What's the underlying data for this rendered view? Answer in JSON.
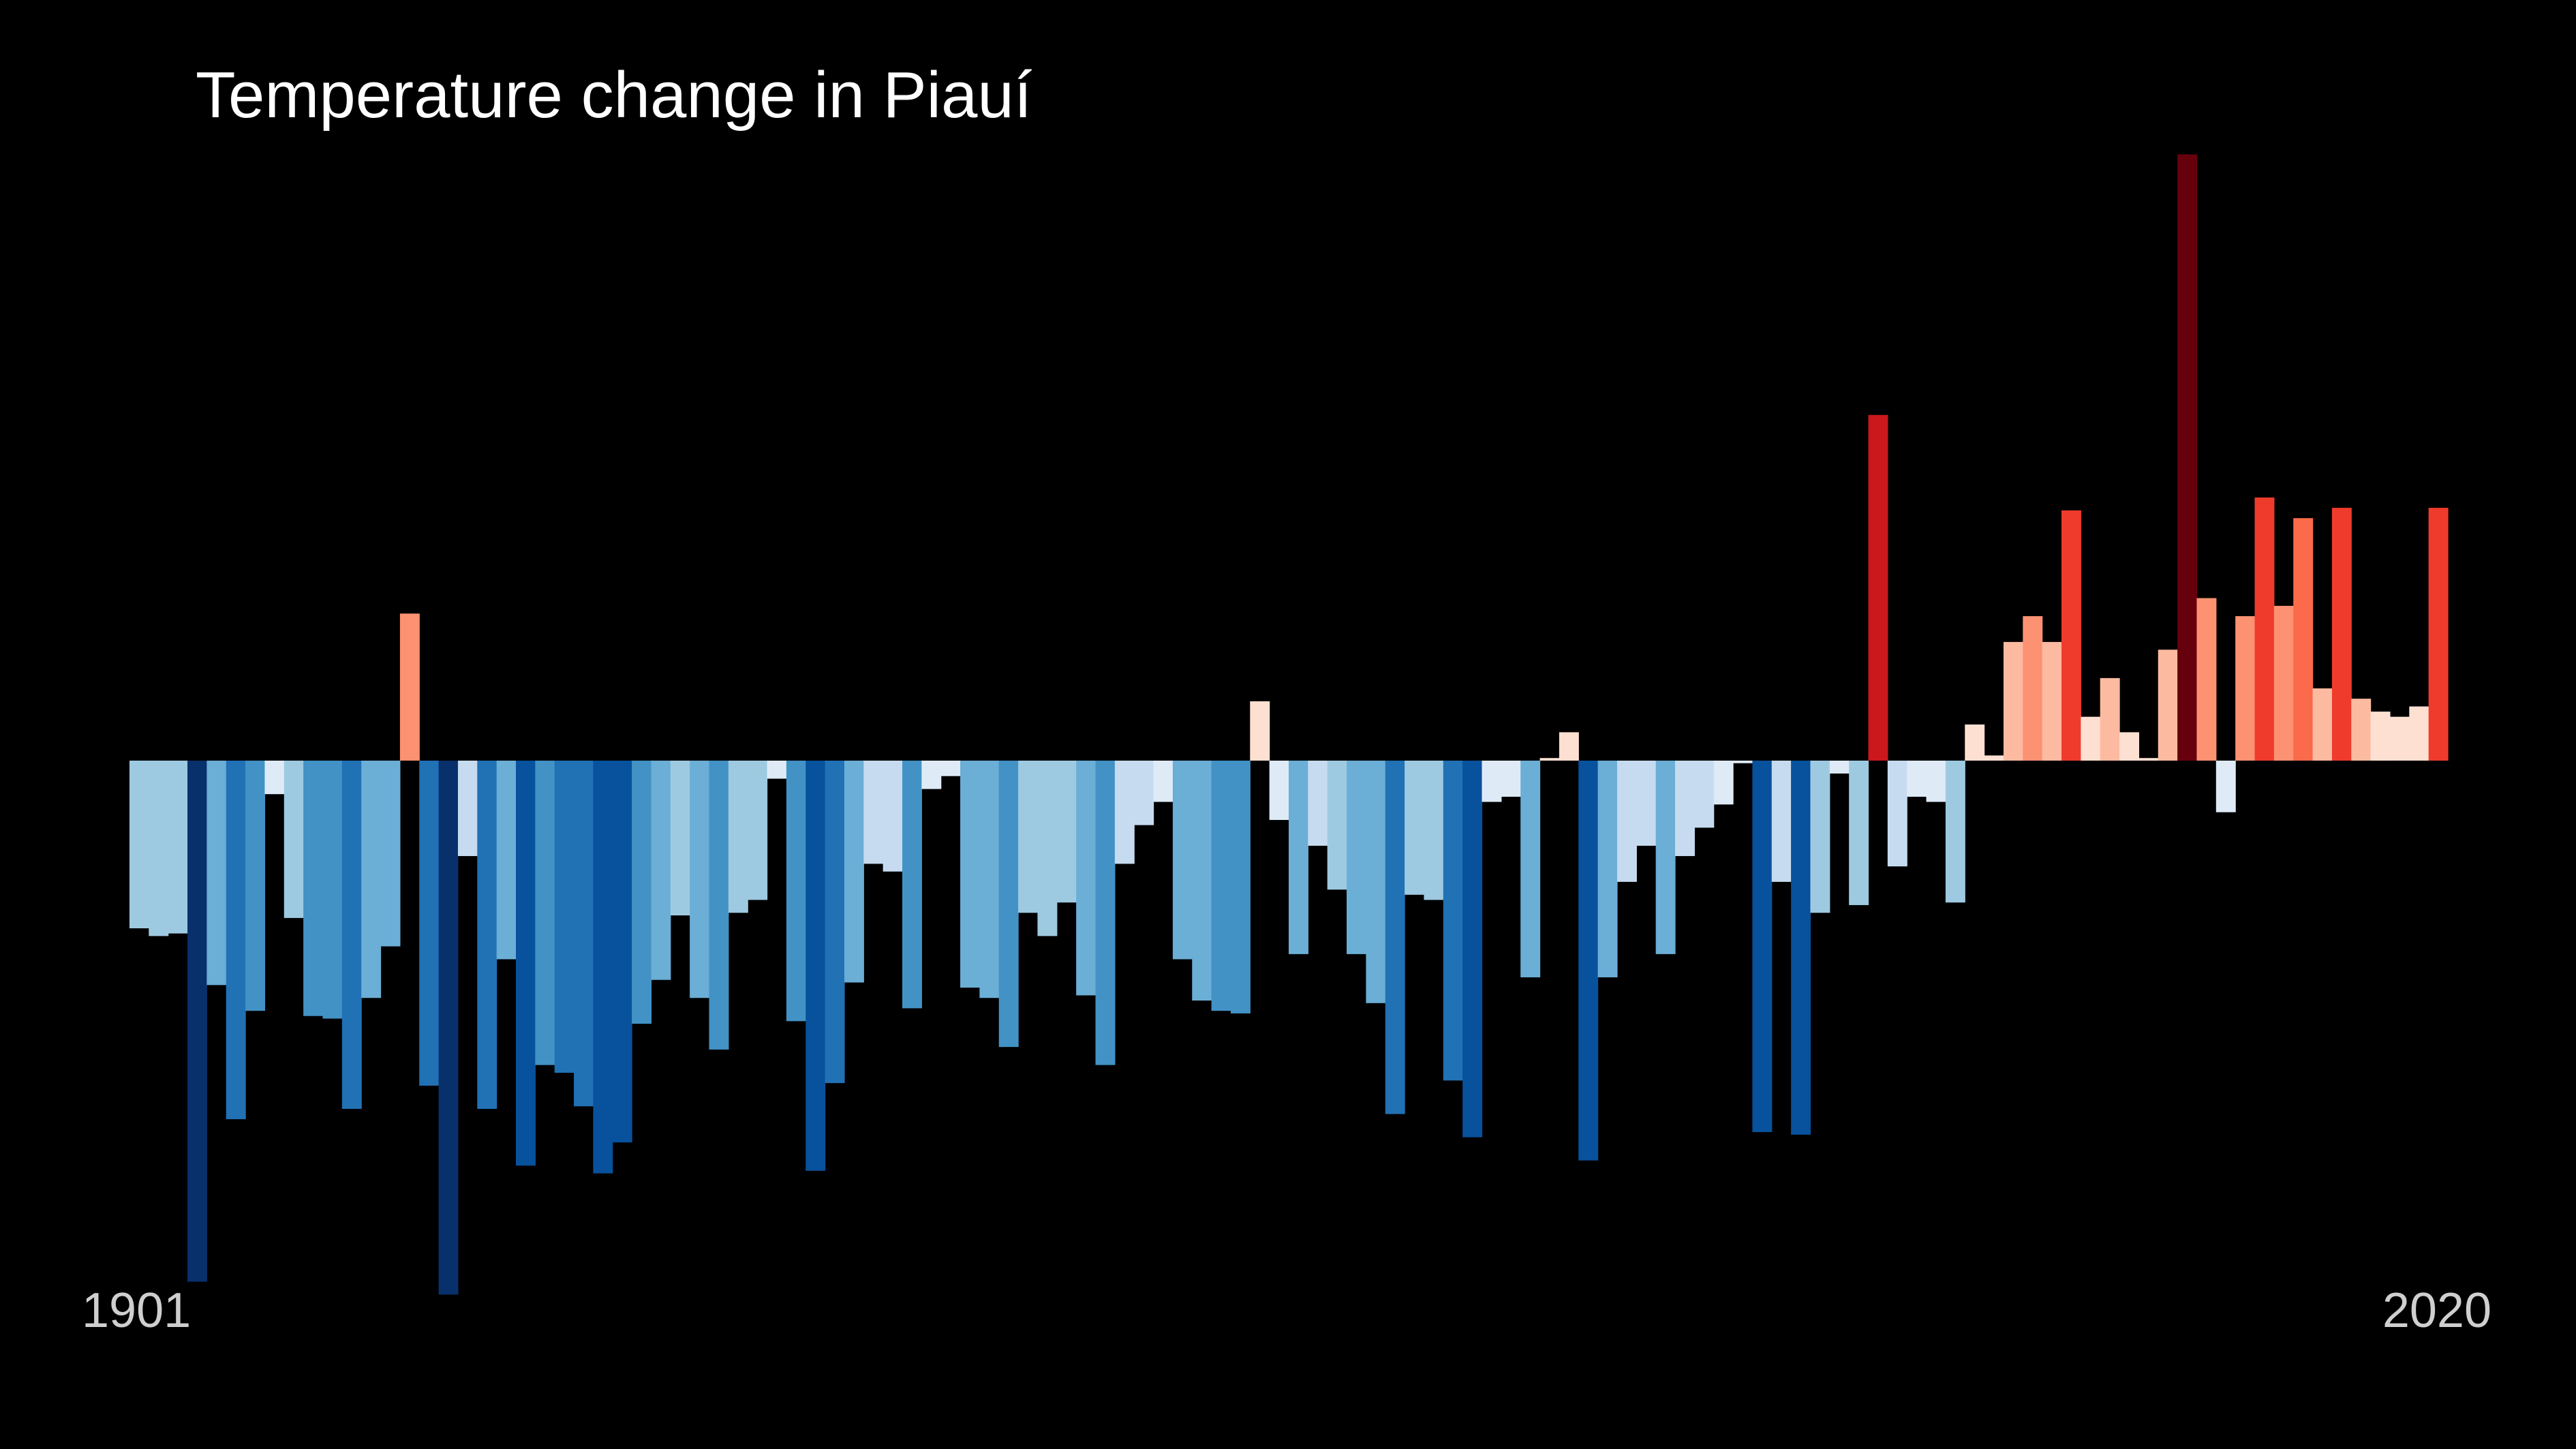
{
  "chart_data": {
    "type": "bar",
    "title": "Temperature change in Piauí",
    "x_start_label": "1901",
    "x_end_label": "2020",
    "x": [
      1901,
      1902,
      1903,
      1904,
      1905,
      1906,
      1907,
      1908,
      1909,
      1910,
      1911,
      1912,
      1913,
      1914,
      1915,
      1916,
      1917,
      1918,
      1919,
      1920,
      1921,
      1922,
      1923,
      1924,
      1925,
      1926,
      1927,
      1928,
      1929,
      1930,
      1931,
      1932,
      1933,
      1934,
      1935,
      1936,
      1937,
      1938,
      1939,
      1940,
      1941,
      1942,
      1943,
      1944,
      1945,
      1946,
      1947,
      1948,
      1949,
      1950,
      1951,
      1952,
      1953,
      1954,
      1955,
      1956,
      1957,
      1958,
      1959,
      1960,
      1961,
      1962,
      1963,
      1964,
      1965,
      1966,
      1967,
      1968,
      1969,
      1970,
      1971,
      1972,
      1973,
      1974,
      1975,
      1976,
      1977,
      1978,
      1979,
      1980,
      1981,
      1982,
      1983,
      1984,
      1985,
      1986,
      1987,
      1988,
      1989,
      1990,
      1991,
      1992,
      1993,
      1994,
      1995,
      1996,
      1997,
      1998,
      1999,
      2000,
      2001,
      2002,
      2003,
      2004,
      2005,
      2006,
      2007,
      2008,
      2009,
      2010,
      2011,
      2012,
      2013,
      2014,
      2015,
      2016,
      2017,
      2018,
      2019,
      2020
    ],
    "values": [
      -0.65,
      -0.68,
      -0.67,
      -2.02,
      -0.87,
      -1.39,
      -0.97,
      -0.13,
      -0.61,
      -0.99,
      -1.0,
      -1.35,
      -0.92,
      -0.72,
      0.57,
      -1.26,
      -2.07,
      -0.37,
      -1.35,
      -0.77,
      -1.57,
      -1.18,
      -1.21,
      -1.34,
      -1.6,
      -1.48,
      -1.02,
      -0.85,
      -0.6,
      -0.92,
      -1.12,
      -0.59,
      -0.54,
      -0.07,
      -1.01,
      -1.59,
      -1.25,
      -0.86,
      -0.4,
      -0.43,
      -0.96,
      -0.11,
      -0.06,
      -0.88,
      -0.92,
      -1.11,
      -0.59,
      -0.68,
      -0.55,
      -0.91,
      -1.18,
      -0.4,
      -0.25,
      -0.16,
      -0.77,
      -0.93,
      -0.97,
      -0.98,
      0.23,
      -0.23,
      -0.75,
      -0.33,
      -0.5,
      -0.75,
      -0.94,
      -1.37,
      -0.52,
      -0.54,
      -1.24,
      -1.46,
      -0.16,
      -0.14,
      -0.84,
      0.01,
      0.11,
      -1.55,
      -0.84,
      -0.47,
      -0.33,
      -0.75,
      -0.37,
      -0.26,
      -0.17,
      -0.01,
      -1.44,
      -0.47,
      -1.45,
      -0.59,
      -0.05,
      -0.56,
      1.34,
      -0.41,
      -0.14,
      -0.16,
      -0.55,
      0.14,
      0.02,
      0.46,
      0.56,
      0.46,
      0.97,
      0.17,
      0.32,
      0.11,
      0.01,
      0.43,
      2.35,
      0.63,
      -0.2,
      0.56,
      1.02,
      0.6,
      0.94,
      0.28,
      0.98,
      0.24,
      0.19,
      0.17,
      0.21,
      0.98
    ],
    "ylim": [
      -2.2,
      2.5
    ],
    "grid": false,
    "legend": "none",
    "colors": {
      "background": "#000000",
      "scale": [
        "#08306b",
        "#08519c",
        "#2171b5",
        "#4292c6",
        "#6baed6",
        "#9ecae1",
        "#c6dbef",
        "#deebf7",
        "#fee0d2",
        "#fcbba1",
        "#fc9272",
        "#fb6a4a",
        "#ef3b2c",
        "#cb181d",
        "#a50f15",
        "#67000d"
      ]
    }
  }
}
